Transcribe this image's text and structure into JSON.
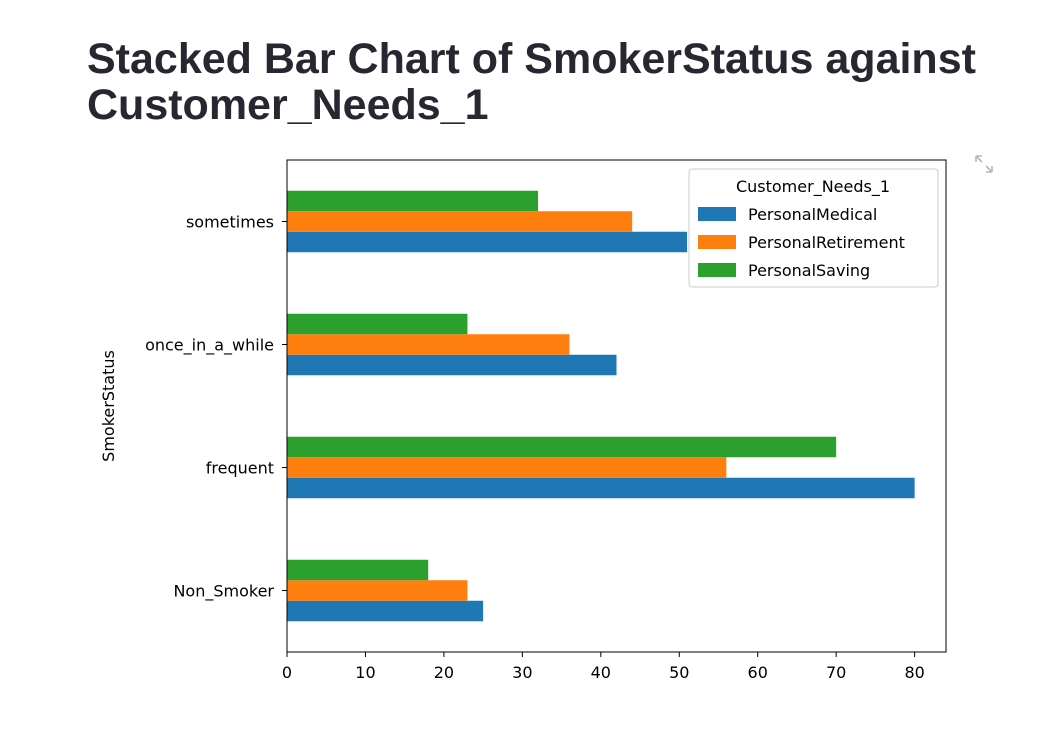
{
  "page": {
    "title": "Stacked Bar Chart of SmokerStatus against Customer_Needs_1"
  },
  "icons": {
    "expand": "expand-icon"
  },
  "colors": {
    "PersonalMedical": "#1f77b4",
    "PersonalRetirement": "#ff7f0e",
    "PersonalSaving": "#2ca02c"
  },
  "chart_data": {
    "type": "bar",
    "orientation": "horizontal",
    "title": "",
    "xlabel": "",
    "ylabel": "SmokerStatus",
    "xlim": [
      0,
      84
    ],
    "xticks": [
      0,
      10,
      20,
      30,
      40,
      50,
      60,
      70,
      80
    ],
    "categories": [
      "Non_Smoker",
      "frequent",
      "once_in_a_while",
      "sometimes"
    ],
    "legend": {
      "title": "Customer_Needs_1",
      "placement": "top-right"
    },
    "series": [
      {
        "name": "PersonalMedical",
        "values": [
          25,
          80,
          42,
          51
        ]
      },
      {
        "name": "PersonalRetirement",
        "values": [
          23,
          56,
          36,
          44
        ]
      },
      {
        "name": "PersonalSaving",
        "values": [
          18,
          70,
          23,
          32
        ]
      }
    ],
    "grid": false
  }
}
